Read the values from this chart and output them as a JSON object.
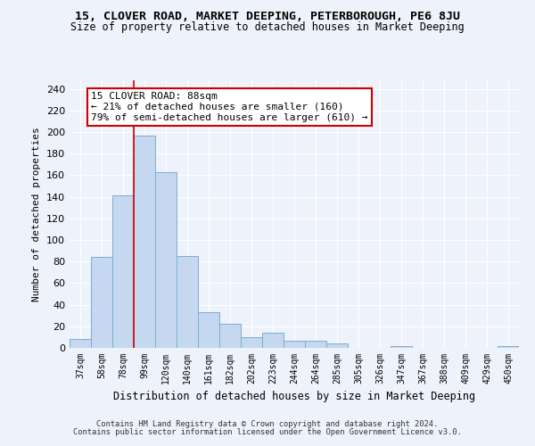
{
  "title": "15, CLOVER ROAD, MARKET DEEPING, PETERBOROUGH, PE6 8JU",
  "subtitle": "Size of property relative to detached houses in Market Deeping",
  "xlabel": "Distribution of detached houses by size in Market Deeping",
  "ylabel": "Number of detached properties",
  "bar_color": "#c5d8f0",
  "bar_edge_color": "#7aaed6",
  "categories": [
    "37sqm",
    "58sqm",
    "78sqm",
    "99sqm",
    "120sqm",
    "140sqm",
    "161sqm",
    "182sqm",
    "202sqm",
    "223sqm",
    "244sqm",
    "264sqm",
    "285sqm",
    "305sqm",
    "326sqm",
    "347sqm",
    "367sqm",
    "388sqm",
    "409sqm",
    "429sqm",
    "450sqm"
  ],
  "values": [
    8,
    84,
    141,
    197,
    163,
    85,
    33,
    22,
    10,
    14,
    7,
    7,
    4,
    0,
    0,
    2,
    0,
    0,
    0,
    0,
    2
  ],
  "ylim": [
    0,
    248
  ],
  "yticks": [
    0,
    20,
    40,
    60,
    80,
    100,
    120,
    140,
    160,
    180,
    200,
    220,
    240
  ],
  "vline_index": 3,
  "annotation_line1": "15 CLOVER ROAD: 88sqm",
  "annotation_line2": "← 21% of detached houses are smaller (160)",
  "annotation_line3": "79% of semi-detached houses are larger (610) →",
  "annotation_box_color": "white",
  "annotation_box_edge_color": "#cc0000",
  "footer_line1": "Contains HM Land Registry data © Crown copyright and database right 2024.",
  "footer_line2": "Contains public sector information licensed under the Open Government Licence v3.0.",
  "background_color": "#eef2fa"
}
